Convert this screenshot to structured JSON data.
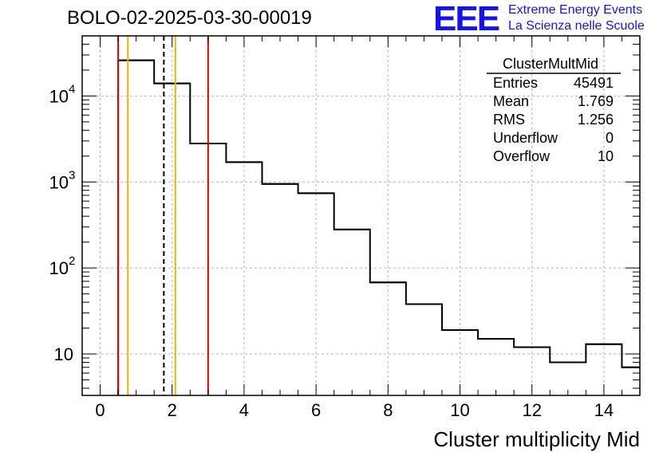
{
  "run_title": "BOLO-02-2025-03-30-00019",
  "logo": {
    "mark": "EEE",
    "line1": "Extreme Energy Events",
    "line2": "La Scienza nelle Scuole",
    "color": "#1414e6"
  },
  "stats_box": {
    "title": "ClusterMultMid",
    "rows": [
      {
        "label": "Entries",
        "value": "45491"
      },
      {
        "label": "Mean",
        "value": "1.769"
      },
      {
        "label": "RMS",
        "value": "1.256"
      },
      {
        "label": "Underflow",
        "value": "0"
      },
      {
        "label": "Overflow",
        "value": "10"
      }
    ]
  },
  "chart_data": {
    "type": "histogram",
    "title": "",
    "xlabel": "Cluster multiplicity Mid",
    "ylabel": "",
    "xlim": [
      -0.5,
      15.0
    ],
    "ylim": [
      3.3,
      50000
    ],
    "y_scale": "log",
    "grid": true,
    "x_ticks": [
      "0",
      "2",
      "4",
      "6",
      "8",
      "10",
      "12",
      "14"
    ],
    "y_ticks": [
      {
        "value": 10,
        "base": "10",
        "exp": ""
      },
      {
        "value": 100,
        "base": "10",
        "exp": "2"
      },
      {
        "value": 1000,
        "base": "10",
        "exp": "3"
      },
      {
        "value": 10000,
        "base": "10",
        "exp": "4"
      }
    ],
    "bins": [
      {
        "x": 1,
        "value": 26000
      },
      {
        "x": 2,
        "value": 14000
      },
      {
        "x": 3,
        "value": 2800
      },
      {
        "x": 4,
        "value": 1700
      },
      {
        "x": 5,
        "value": 950
      },
      {
        "x": 6,
        "value": 740
      },
      {
        "x": 7,
        "value": 280
      },
      {
        "x": 8,
        "value": 68
      },
      {
        "x": 9,
        "value": 38
      },
      {
        "x": 10,
        "value": 19
      },
      {
        "x": 11,
        "value": 15
      },
      {
        "x": 12,
        "value": 12
      },
      {
        "x": 13,
        "value": 8
      },
      {
        "x": 14,
        "value": 13
      },
      {
        "x": 15,
        "value": 7
      }
    ],
    "bin_width": 1,
    "colors": {
      "histogram": "#000000",
      "red": "#e00000",
      "orange": "#f0b400",
      "grid": "#b4b4b4"
    },
    "vertical_lines": [
      {
        "x": 0.5,
        "color": "red",
        "style": "solid"
      },
      {
        "x": 0.77,
        "color": "orange",
        "style": "solid"
      },
      {
        "x": 1.77,
        "color": "black",
        "style": "dashed"
      },
      {
        "x": 2.09,
        "color": "orange",
        "style": "solid"
      },
      {
        "x": 3.0,
        "color": "red",
        "style": "solid"
      }
    ]
  }
}
